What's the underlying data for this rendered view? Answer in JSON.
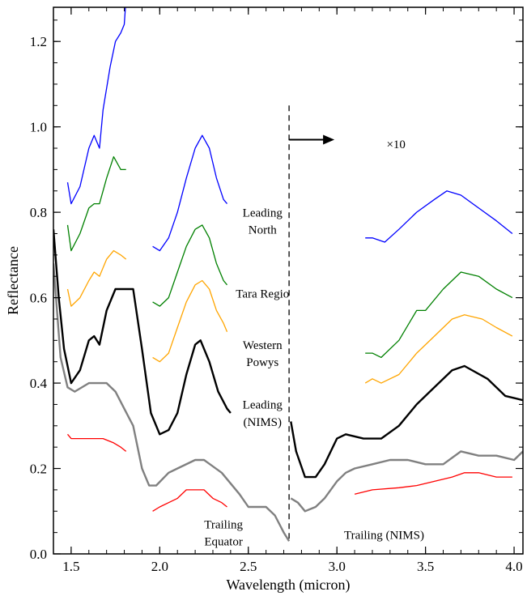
{
  "chart_data": {
    "type": "line",
    "title": "",
    "xlabel": "Wavelength (micron)",
    "ylabel": "Reflectance",
    "xlim": [
      1.4,
      4.05
    ],
    "ylim": [
      0.0,
      1.28
    ],
    "xticks": [
      1.5,
      2.0,
      2.5,
      3.0,
      3.5,
      4.0
    ],
    "xtick_labels": [
      "1.5",
      "2.0",
      "2.5",
      "3.0",
      "3.5",
      "4.0"
    ],
    "yticks": [
      0.0,
      0.2,
      0.4,
      0.6,
      0.8,
      1.0,
      1.2
    ],
    "ytick_labels": [
      "0.0",
      "0.2",
      "0.4",
      "0.6",
      "0.8",
      "1.0",
      "1.2"
    ],
    "grid": false,
    "legend": "none",
    "annotations": [
      {
        "text": "×10",
        "x": 3.28,
        "y": 0.95
      },
      {
        "text": "Leading",
        "x": 2.58,
        "y": 0.79
      },
      {
        "text": "North",
        "x": 2.58,
        "y": 0.75
      },
      {
        "text": "Tara Regio",
        "x": 2.58,
        "y": 0.6
      },
      {
        "text": "Western",
        "x": 2.58,
        "y": 0.48
      },
      {
        "text": "Powys",
        "x": 2.58,
        "y": 0.44
      },
      {
        "text": "Leading",
        "x": 2.58,
        "y": 0.34
      },
      {
        "text": "(NIMS)",
        "x": 2.58,
        "y": 0.3
      },
      {
        "text": "Trailing",
        "x": 2.36,
        "y": 0.06
      },
      {
        "text": "Equator",
        "x": 2.36,
        "y": 0.02
      },
      {
        "text": "Trailing (NIMS)",
        "x": 3.04,
        "y": 0.035
      }
    ],
    "vline_x": 2.73,
    "series": [
      {
        "color": "#0000ff",
        "segments": [
          [
            [
              1.48,
              0.87
            ],
            [
              1.5,
              0.82
            ],
            [
              1.55,
              0.86
            ],
            [
              1.6,
              0.95
            ],
            [
              1.63,
              0.98
            ],
            [
              1.66,
              0.95
            ],
            [
              1.68,
              1.04
            ],
            [
              1.72,
              1.14
            ],
            [
              1.75,
              1.2
            ],
            [
              1.78,
              1.22
            ],
            [
              1.8,
              1.24
            ],
            [
              1.81,
              1.3
            ]
          ],
          [
            [
              1.96,
              0.72
            ],
            [
              2.0,
              0.71
            ],
            [
              2.05,
              0.74
            ],
            [
              2.1,
              0.8
            ],
            [
              2.15,
              0.88
            ],
            [
              2.2,
              0.95
            ],
            [
              2.24,
              0.98
            ],
            [
              2.28,
              0.95
            ],
            [
              2.32,
              0.88
            ],
            [
              2.36,
              0.83
            ],
            [
              2.38,
              0.82
            ]
          ],
          [
            [
              3.16,
              0.74
            ],
            [
              3.2,
              0.74
            ],
            [
              3.27,
              0.73
            ],
            [
              3.35,
              0.76
            ],
            [
              3.45,
              0.8
            ],
            [
              3.55,
              0.83
            ],
            [
              3.62,
              0.85
            ],
            [
              3.7,
              0.84
            ],
            [
              3.8,
              0.81
            ],
            [
              3.9,
              0.78
            ],
            [
              3.99,
              0.75
            ]
          ]
        ]
      },
      {
        "color": "#008000",
        "segments": [
          [
            [
              1.48,
              0.77
            ],
            [
              1.5,
              0.71
            ],
            [
              1.55,
              0.75
            ],
            [
              1.6,
              0.81
            ],
            [
              1.63,
              0.82
            ],
            [
              1.66,
              0.82
            ],
            [
              1.7,
              0.88
            ],
            [
              1.74,
              0.93
            ],
            [
              1.78,
              0.9
            ],
            [
              1.81,
              0.9
            ]
          ],
          [
            [
              1.96,
              0.59
            ],
            [
              2.0,
              0.58
            ],
            [
              2.05,
              0.6
            ],
            [
              2.1,
              0.66
            ],
            [
              2.15,
              0.72
            ],
            [
              2.2,
              0.76
            ],
            [
              2.24,
              0.77
            ],
            [
              2.28,
              0.74
            ],
            [
              2.32,
              0.68
            ],
            [
              2.36,
              0.64
            ],
            [
              2.38,
              0.63
            ]
          ],
          [
            [
              3.16,
              0.47
            ],
            [
              3.2,
              0.47
            ],
            [
              3.25,
              0.46
            ],
            [
              3.35,
              0.5
            ],
            [
              3.45,
              0.57
            ],
            [
              3.5,
              0.57
            ],
            [
              3.6,
              0.62
            ],
            [
              3.7,
              0.66
            ],
            [
              3.8,
              0.65
            ],
            [
              3.9,
              0.62
            ],
            [
              3.99,
              0.6
            ]
          ]
        ]
      },
      {
        "color": "#ffa500",
        "segments": [
          [
            [
              1.48,
              0.62
            ],
            [
              1.5,
              0.58
            ],
            [
              1.55,
              0.6
            ],
            [
              1.6,
              0.64
            ],
            [
              1.63,
              0.66
            ],
            [
              1.66,
              0.65
            ],
            [
              1.7,
              0.69
            ],
            [
              1.74,
              0.71
            ],
            [
              1.78,
              0.7
            ],
            [
              1.81,
              0.69
            ]
          ],
          [
            [
              1.96,
              0.46
            ],
            [
              2.0,
              0.45
            ],
            [
              2.05,
              0.47
            ],
            [
              2.1,
              0.53
            ],
            [
              2.15,
              0.59
            ],
            [
              2.2,
              0.63
            ],
            [
              2.24,
              0.64
            ],
            [
              2.28,
              0.62
            ],
            [
              2.32,
              0.57
            ],
            [
              2.36,
              0.54
            ],
            [
              2.38,
              0.52
            ]
          ],
          [
            [
              3.16,
              0.4
            ],
            [
              3.2,
              0.41
            ],
            [
              3.25,
              0.4
            ],
            [
              3.35,
              0.42
            ],
            [
              3.45,
              0.47
            ],
            [
              3.55,
              0.51
            ],
            [
              3.65,
              0.55
            ],
            [
              3.72,
              0.56
            ],
            [
              3.82,
              0.55
            ],
            [
              3.9,
              0.53
            ],
            [
              3.99,
              0.51
            ]
          ]
        ]
      },
      {
        "color": "#000000",
        "segments": [
          [
            [
              1.4,
              0.76
            ],
            [
              1.43,
              0.6
            ],
            [
              1.46,
              0.48
            ],
            [
              1.5,
              0.4
            ],
            [
              1.55,
              0.43
            ],
            [
              1.6,
              0.5
            ],
            [
              1.63,
              0.51
            ],
            [
              1.66,
              0.49
            ],
            [
              1.7,
              0.57
            ],
            [
              1.75,
              0.62
            ],
            [
              1.85,
              0.62
            ],
            [
              1.9,
              0.48
            ],
            [
              1.95,
              0.33
            ],
            [
              2.0,
              0.28
            ],
            [
              2.05,
              0.29
            ],
            [
              2.1,
              0.33
            ],
            [
              2.15,
              0.42
            ],
            [
              2.2,
              0.49
            ],
            [
              2.23,
              0.5
            ],
            [
              2.28,
              0.45
            ],
            [
              2.33,
              0.38
            ],
            [
              2.38,
              0.34
            ],
            [
              2.4,
              0.33
            ]
          ],
          [
            [
              2.74,
              0.31
            ],
            [
              2.77,
              0.24
            ],
            [
              2.82,
              0.18
            ],
            [
              2.88,
              0.18
            ],
            [
              2.93,
              0.21
            ],
            [
              3.0,
              0.27
            ],
            [
              3.05,
              0.28
            ],
            [
              3.15,
              0.27
            ],
            [
              3.25,
              0.27
            ],
            [
              3.35,
              0.3
            ],
            [
              3.45,
              0.35
            ],
            [
              3.55,
              0.39
            ],
            [
              3.65,
              0.43
            ],
            [
              3.72,
              0.44
            ],
            [
              3.85,
              0.41
            ],
            [
              3.95,
              0.37
            ],
            [
              4.05,
              0.36
            ]
          ]
        ]
      },
      {
        "color": "#808080",
        "segments": [
          [
            [
              1.4,
              0.68
            ],
            [
              1.44,
              0.46
            ],
            [
              1.48,
              0.39
            ],
            [
              1.52,
              0.38
            ],
            [
              1.6,
              0.4
            ],
            [
              1.7,
              0.4
            ],
            [
              1.75,
              0.38
            ],
            [
              1.8,
              0.34
            ],
            [
              1.85,
              0.3
            ],
            [
              1.9,
              0.2
            ],
            [
              1.94,
              0.16
            ],
            [
              1.98,
              0.16
            ],
            [
              2.05,
              0.19
            ],
            [
              2.1,
              0.2
            ],
            [
              2.2,
              0.22
            ],
            [
              2.25,
              0.22
            ],
            [
              2.35,
              0.19
            ],
            [
              2.45,
              0.14
            ],
            [
              2.5,
              0.11
            ],
            [
              2.6,
              0.11
            ],
            [
              2.65,
              0.09
            ],
            [
              2.7,
              0.05
            ],
            [
              2.73,
              0.03
            ]
          ],
          [
            [
              2.74,
              0.13
            ],
            [
              2.78,
              0.12
            ],
            [
              2.82,
              0.1
            ],
            [
              2.88,
              0.11
            ],
            [
              2.93,
              0.13
            ],
            [
              3.0,
              0.17
            ],
            [
              3.05,
              0.19
            ],
            [
              3.1,
              0.2
            ],
            [
              3.2,
              0.21
            ],
            [
              3.3,
              0.22
            ],
            [
              3.4,
              0.22
            ],
            [
              3.5,
              0.21
            ],
            [
              3.55,
              0.21
            ],
            [
              3.6,
              0.21
            ],
            [
              3.7,
              0.24
            ],
            [
              3.8,
              0.23
            ],
            [
              3.9,
              0.23
            ],
            [
              4.0,
              0.22
            ],
            [
              4.05,
              0.24
            ]
          ]
        ]
      },
      {
        "color": "#ff0000",
        "segments": [
          [
            [
              1.48,
              0.28
            ],
            [
              1.5,
              0.27
            ],
            [
              1.6,
              0.27
            ],
            [
              1.68,
              0.27
            ],
            [
              1.74,
              0.26
            ],
            [
              1.78,
              0.25
            ],
            [
              1.81,
              0.24
            ]
          ],
          [
            [
              1.96,
              0.1
            ],
            [
              2.0,
              0.11
            ],
            [
              2.05,
              0.12
            ],
            [
              2.1,
              0.13
            ],
            [
              2.15,
              0.15
            ],
            [
              2.2,
              0.15
            ],
            [
              2.25,
              0.15
            ],
            [
              2.3,
              0.13
            ],
            [
              2.35,
              0.12
            ],
            [
              2.38,
              0.11
            ]
          ],
          [
            [
              3.1,
              0.14
            ],
            [
              3.2,
              0.15
            ],
            [
              3.35,
              0.155
            ],
            [
              3.45,
              0.16
            ],
            [
              3.55,
              0.17
            ],
            [
              3.65,
              0.18
            ],
            [
              3.72,
              0.19
            ],
            [
              3.8,
              0.19
            ],
            [
              3.9,
              0.18
            ],
            [
              3.99,
              0.18
            ]
          ]
        ]
      }
    ]
  }
}
